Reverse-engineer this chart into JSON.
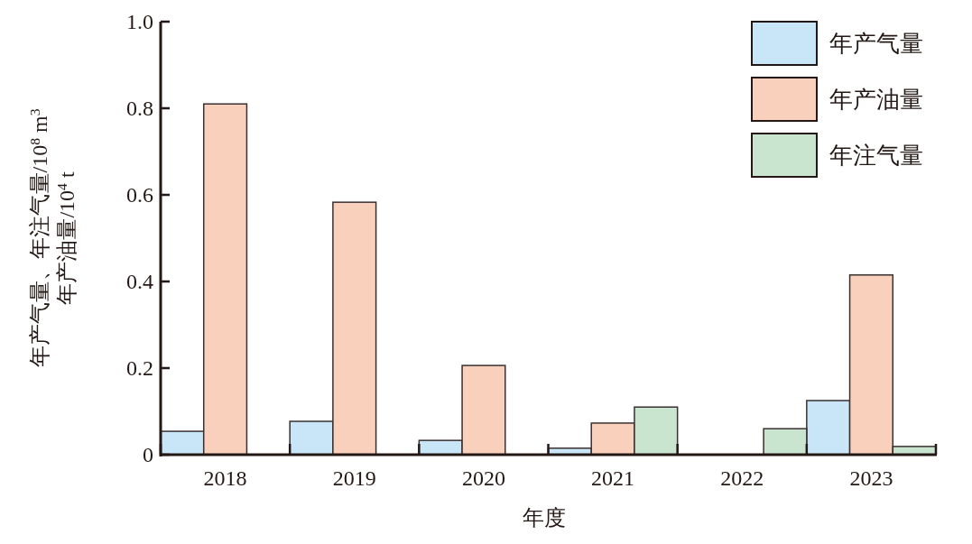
{
  "chart_data": {
    "type": "bar",
    "xlabel": "年度",
    "ylabel": "年产气量、年注气量/10$^{8}$ m$^{3}$\n年产油量/10$^{4}$ t",
    "categories": [
      "2018",
      "2019",
      "2020",
      "2021",
      "2022",
      "2023"
    ],
    "series": [
      {
        "name": "年产气量",
        "color": "#c9e6f8",
        "values": [
          0.054,
          0.077,
          0.033,
          0.015,
          0,
          0.125
        ]
      },
      {
        "name": "年产油量",
        "color": "#f8d0bb",
        "values": [
          0.81,
          0.583,
          0.206,
          0.073,
          0,
          0.415
        ]
      },
      {
        "name": "年注气量",
        "color": "#c9e4cf",
        "values": [
          0,
          0,
          0,
          0.11,
          0.06,
          0.019
        ]
      }
    ],
    "ylim": [
      0,
      1
    ],
    "yticks": [
      0,
      0.2,
      0.4,
      0.6,
      0.8,
      {
        "value": 1,
        "label": "1.0"
      }
    ],
    "legend": "top right"
  }
}
